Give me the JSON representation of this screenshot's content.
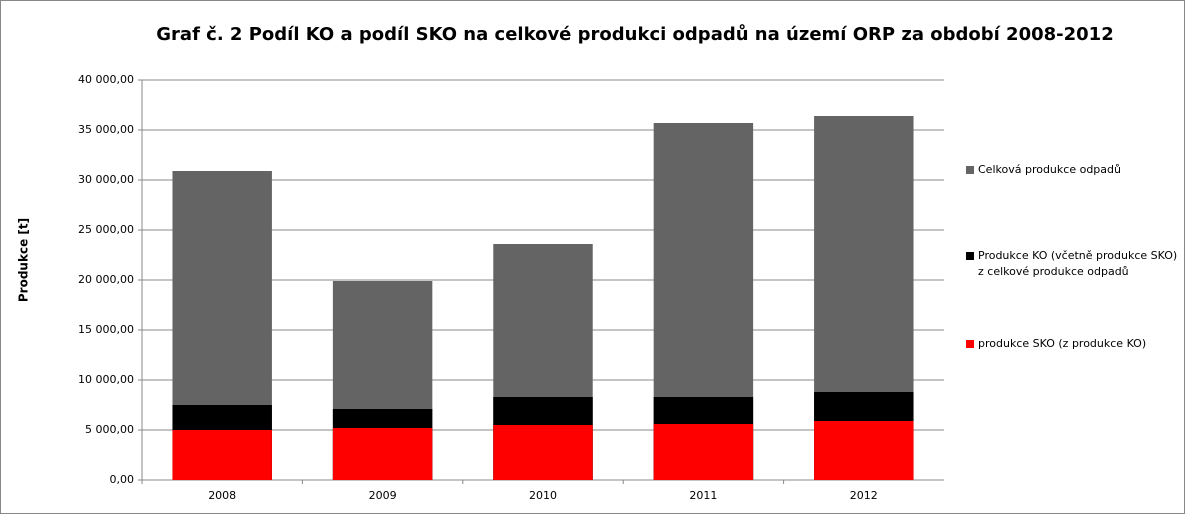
{
  "chart_data": {
    "type": "bar",
    "title": "Graf č. 2 Podíl KO a podíl SKO na celkové produkci odpadů na území ORP za období 2008-2012",
    "y_label": "Produkce [t]",
    "categories": [
      "2008",
      "2009",
      "2010",
      "2011",
      "2012"
    ],
    "series": [
      {
        "name": "Celková produkce odpadů",
        "color": "#646464",
        "values": [
          30900,
          19900,
          23600,
          35700,
          36400
        ]
      },
      {
        "name": "Produkce KO (včetně produkce SKO) z celkové produkce odpadů",
        "color": "#000000",
        "values": [
          7500,
          7100,
          8300,
          8300,
          8800
        ]
      },
      {
        "name": "produkce SKO (z produkce KO)",
        "color": "#ff0000",
        "values": [
          5000,
          5200,
          5500,
          5600,
          5900
        ]
      }
    ],
    "ylim": [
      0,
      40000
    ],
    "yticks": [
      {
        "value": 0,
        "label": "0,00"
      },
      {
        "value": 5000,
        "label": "5 000,00"
      },
      {
        "value": 10000,
        "label": "10 000,00"
      },
      {
        "value": 15000,
        "label": "15 000,00"
      },
      {
        "value": 20000,
        "label": "20 000,00"
      },
      {
        "value": 25000,
        "label": "25 000,00"
      },
      {
        "value": 30000,
        "label": "30 000,00"
      },
      {
        "value": 35000,
        "label": "35 000,00"
      },
      {
        "value": 40000,
        "label": "40 000,00"
      }
    ],
    "grid": true,
    "legend": "right"
  }
}
